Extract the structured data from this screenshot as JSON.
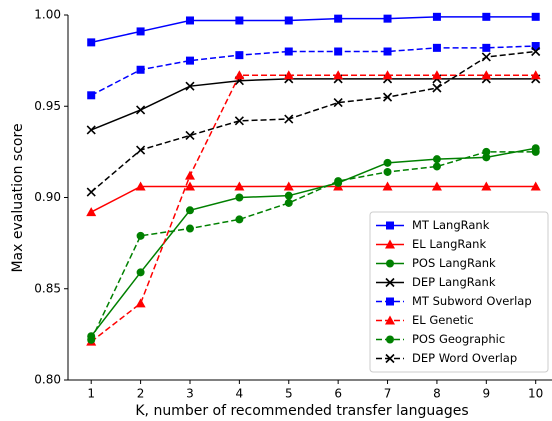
{
  "chart_data": {
    "type": "line",
    "x_label": "K, number of recommended transfer languages",
    "y_label": "Max evaluation score",
    "x": [
      1,
      2,
      3,
      4,
      5,
      6,
      7,
      8,
      9,
      10
    ],
    "xlim": [
      0.53,
      10.33
    ],
    "xticks": [
      1,
      2,
      3,
      4,
      5,
      6,
      7,
      8,
      9,
      10
    ],
    "ylim": [
      0.8,
      1.0
    ],
    "yticks": [
      {
        "value": 0.8,
        "label": "0.80"
      },
      {
        "value": 0.85,
        "label": "0.85"
      },
      {
        "value": 0.9,
        "label": "0.90"
      },
      {
        "value": 0.95,
        "label": "0.95"
      },
      {
        "value": 1.0,
        "label": "1.00"
      }
    ],
    "legend": "lower right",
    "series": [
      {
        "name": "MT LangRank",
        "color": "#0000ff",
        "dashed": false,
        "marker": "square",
        "values": [
          0.985,
          0.991,
          0.997,
          0.997,
          0.997,
          0.998,
          0.998,
          0.999,
          0.999,
          0.999
        ]
      },
      {
        "name": "EL LangRank",
        "color": "#ff0000",
        "dashed": false,
        "marker": "triangle",
        "values": [
          0.892,
          0.906,
          0.906,
          0.906,
          0.906,
          0.906,
          0.906,
          0.906,
          0.906,
          0.906
        ]
      },
      {
        "name": "POS LangRank",
        "color": "#008000",
        "dashed": false,
        "marker": "circle",
        "values": [
          0.824,
          0.859,
          0.893,
          0.9,
          0.901,
          0.908,
          0.919,
          0.921,
          0.922,
          0.927
        ]
      },
      {
        "name": "DEP LangRank",
        "color": "#000000",
        "dashed": false,
        "marker": "x",
        "values": [
          0.937,
          0.948,
          0.961,
          0.964,
          0.965,
          0.965,
          0.965,
          0.965,
          0.965,
          0.965
        ]
      },
      {
        "name": "MT Subword Overlap",
        "color": "#0000ff",
        "dashed": true,
        "marker": "square",
        "values": [
          0.956,
          0.97,
          0.975,
          0.978,
          0.98,
          0.98,
          0.98,
          0.982,
          0.982,
          0.983
        ]
      },
      {
        "name": "EL Genetic",
        "color": "#ff0000",
        "dashed": true,
        "marker": "triangle",
        "values": [
          0.821,
          0.842,
          0.912,
          0.967,
          0.967,
          0.967,
          0.967,
          0.967,
          0.967,
          0.967
        ]
      },
      {
        "name": "POS Geographic",
        "color": "#008000",
        "dashed": true,
        "marker": "circle",
        "values": [
          0.822,
          0.879,
          0.883,
          0.888,
          0.897,
          0.909,
          0.914,
          0.917,
          0.925,
          0.925
        ]
      },
      {
        "name": "DEP Word Overlap",
        "color": "#000000",
        "dashed": true,
        "marker": "x",
        "values": [
          0.903,
          0.926,
          0.934,
          0.942,
          0.943,
          0.952,
          0.955,
          0.96,
          0.977,
          0.98
        ]
      }
    ]
  }
}
